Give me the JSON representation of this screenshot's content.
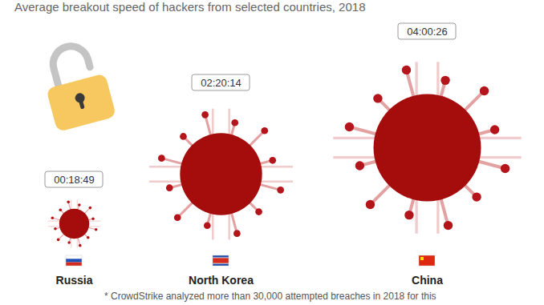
{
  "chart_data": {
    "type": "bubble",
    "title": "Average breakout speed of hackers from selected countries, 2018",
    "categories": [
      "Russia",
      "North Korea",
      "China"
    ],
    "values": [
      1129,
      8414,
      14426
    ],
    "value_labels": [
      "00:18:49",
      "02:20:14",
      "04:00:26"
    ],
    "color": "#a50d0d",
    "data_labels": true,
    "tick_labels": false,
    "caption": "* CrowdStrike analyzed more than 30,000 attempted breaches in 2018 for this"
  }
}
